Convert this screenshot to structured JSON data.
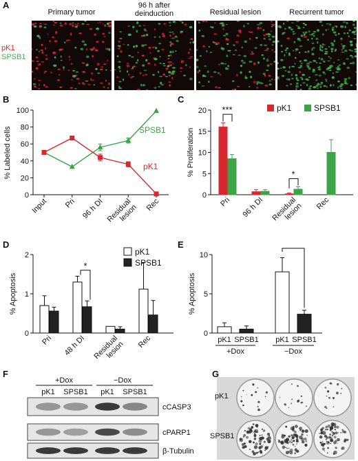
{
  "panel_letters": {
    "a": "A",
    "b": "B",
    "c": "C",
    "d": "D",
    "e": "E",
    "f": "F",
    "g": "G"
  },
  "panel_a": {
    "titles": [
      "Primary tumor",
      "96 h after\ndeinduction",
      "Residual lesion",
      "Recurrent tumor"
    ],
    "channels": [
      {
        "label": "pK1",
        "color": "#e0262b"
      },
      {
        "label": "SPSB1",
        "color": "#3cb54a"
      }
    ],
    "red_fraction": [
      0.67,
      0.45,
      0.36,
      0.02
    ]
  },
  "colors": {
    "red": "#d7282f",
    "green": "#3aa447",
    "black": "#222222",
    "white": "#ffffff"
  },
  "chart_data": [
    {
      "panel": "B",
      "type": "line",
      "ylabel": "% Labeled cells",
      "categories": [
        "Input",
        "Pri",
        "96 h DI",
        "Residual\nlesion",
        "Rec"
      ],
      "ylim": [
        0,
        100
      ],
      "yticks": [
        0,
        20,
        40,
        60,
        80,
        100
      ],
      "series": [
        {
          "name": "SPSB1",
          "color": "#3aa447",
          "marker": "triangle",
          "values": [
            50,
            33,
            56,
            64,
            99
          ],
          "errors": [
            0,
            0,
            4,
            3,
            0
          ]
        },
        {
          "name": "pK1",
          "color": "#d7282f",
          "marker": "square",
          "values": [
            50,
            67,
            44,
            36,
            1
          ],
          "errors": [
            0,
            0,
            4,
            3,
            0
          ]
        }
      ]
    },
    {
      "panel": "C",
      "type": "bar",
      "ylabel": "% Proliferation",
      "categories": [
        "Pri",
        "96 h DI",
        "Residual\nlesion",
        "Rec"
      ],
      "ylim": [
        0,
        20
      ],
      "yticks": [
        0,
        5,
        10,
        15,
        20
      ],
      "legend": "top-right",
      "series": [
        {
          "name": "pK1",
          "color": "#d7282f",
          "values": [
            16,
            0.7,
            0.2,
            null
          ],
          "errors": [
            1,
            0.5,
            0.2,
            null
          ]
        },
        {
          "name": "SPSB1",
          "color": "#3aa447",
          "values": [
            8.5,
            0.8,
            1.3,
            10
          ],
          "errors": [
            1,
            0.4,
            0.6,
            3
          ]
        }
      ],
      "annotations": [
        {
          "text": "***",
          "category": "Pri"
        },
        {
          "text": "*",
          "category": "Residual\nlesion"
        }
      ]
    },
    {
      "panel": "D",
      "type": "bar",
      "ylabel": "% Apoptosis",
      "categories": [
        "Pri",
        "48 h DI",
        "Residual\nlesion",
        "Rec"
      ],
      "ylim": [
        0,
        2
      ],
      "yticks": [
        0,
        1,
        2
      ],
      "legend": "top-right",
      "series": [
        {
          "name": "pK1",
          "color": "#ffffff",
          "values": [
            0.7,
            1.3,
            0.17,
            1.12
          ],
          "errors": [
            0.25,
            0.15,
            0,
            0.68
          ]
        },
        {
          "name": "SPSB1",
          "color": "#222222",
          "values": [
            0.56,
            0.67,
            0.1,
            0.46
          ],
          "errors": [
            0.1,
            0.15,
            0.06,
            0.37
          ]
        }
      ],
      "annotations": [
        {
          "text": "*",
          "category": "48 h DI"
        }
      ]
    },
    {
      "panel": "E",
      "type": "bar",
      "ylabel": "% Apoptosis",
      "groups": [
        "+Dox",
        "−Dox"
      ],
      "categories": [
        "pK1",
        "SPSB1",
        "pK1",
        "SPSB1"
      ],
      "ylim": [
        0,
        10
      ],
      "yticks": [
        0,
        5,
        10
      ],
      "colors": [
        "#ffffff",
        "#222222",
        "#ffffff",
        "#222222"
      ],
      "values": [
        0.8,
        0.5,
        7.8,
        2.4
      ],
      "errors": [
        0.5,
        0.4,
        1.8,
        0.5
      ],
      "annotations": [
        {
          "text": "*",
          "between": [
            2,
            3
          ]
        }
      ]
    }
  ],
  "panel_f": {
    "groups": [
      "+Dox",
      "−Dox"
    ],
    "lanes": [
      "pK1",
      "SPSB1",
      "pK1",
      "SPSB1"
    ],
    "blots": [
      {
        "label": "cCASP3",
        "intensities": [
          0.35,
          0.35,
          0.9,
          0.45
        ]
      },
      {
        "label": "cPARP1",
        "intensities": [
          0.35,
          0.3,
          0.8,
          0.4
        ]
      },
      {
        "label": "β-Tubulin",
        "intensities": [
          0.9,
          0.9,
          0.9,
          0.9
        ]
      }
    ]
  },
  "panel_g": {
    "rows": [
      "pK1",
      "SPSB1"
    ]
  }
}
